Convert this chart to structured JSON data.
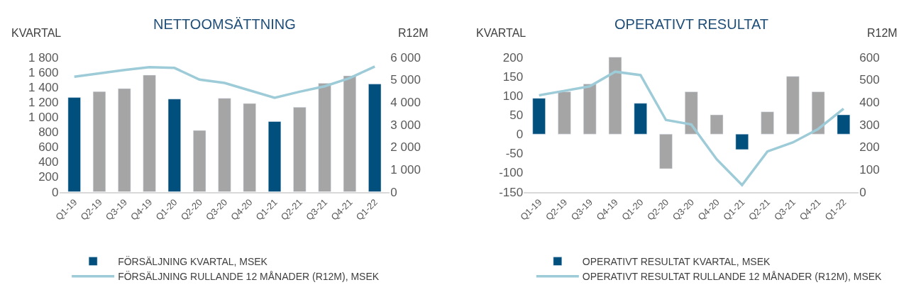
{
  "chart_data": [
    {
      "type": "bar",
      "title": "NETTOOMSÄTTNING",
      "ylabel": "KVARTAL",
      "y2label": "R12M",
      "categories": [
        "Q1-19",
        "Q2-19",
        "Q3-19",
        "Q4-19",
        "Q1-20",
        "Q2-20",
        "Q3-20",
        "Q4-20",
        "Q1-21",
        "Q2-21",
        "Q3-21",
        "Q4-21",
        "Q1-22"
      ],
      "series": [
        {
          "name": "FÖRSÄLJNING KVARTAL, MSEK",
          "colors": [
            "#004f7c",
            "#a5a5a5",
            "#a5a5a5",
            "#a5a5a5",
            "#004f7c",
            "#a5a5a5",
            "#a5a5a5",
            "#a5a5a5",
            "#004f7c",
            "#a5a5a5",
            "#a5a5a5",
            "#a5a5a5",
            "#004f7c"
          ],
          "values": [
            1260,
            1340,
            1380,
            1560,
            1240,
            820,
            1250,
            1180,
            940,
            1130,
            1450,
            1550,
            1440
          ]
        },
        {
          "name": "FÖRSÄLJNING RULLANDE 12 MÅNADER (R12M), MSEK",
          "type": "line",
          "axis": "y2",
          "color": "#9dcbd8",
          "values": [
            5130,
            5280,
            5430,
            5550,
            5520,
            5000,
            4850,
            4520,
            4190,
            4460,
            4700,
            5070,
            5580
          ]
        }
      ],
      "ylim": [
        0,
        1800
      ],
      "yticks": [
        {
          "value": 0,
          "label": "0"
        },
        {
          "value": 200,
          "label": "200"
        },
        {
          "value": 400,
          "label": "400"
        },
        {
          "value": 600,
          "label": "600"
        },
        {
          "value": 800,
          "label": "800"
        },
        {
          "value": 1000,
          "label": "1 000"
        },
        {
          "value": 1200,
          "label": "1 200"
        },
        {
          "value": 1400,
          "label": "1 400"
        },
        {
          "value": 1600,
          "label": "1 600"
        },
        {
          "value": 1800,
          "label": "1 800"
        }
      ],
      "y2lim": [
        0,
        6000
      ],
      "y2ticks": [
        {
          "value": 0,
          "label": "0"
        },
        {
          "value": 1000,
          "label": "1 000"
        },
        {
          "value": 2000,
          "label": "2 000"
        },
        {
          "value": 3000,
          "label": "3 000"
        },
        {
          "value": 4000,
          "label": "4 000"
        },
        {
          "value": 5000,
          "label": "5 000"
        },
        {
          "value": 6000,
          "label": "6 000"
        }
      ],
      "legend": "bottom",
      "marker": "none",
      "line_style": "solid"
    },
    {
      "type": "bar",
      "title": "OPERATIVT RESULTAT",
      "ylabel": "KVARTAL",
      "y2label": "R12M",
      "categories": [
        "Q1-19",
        "Q2-19",
        "Q3-19",
        "Q4-19",
        "Q1-20",
        "Q2-20",
        "Q3-20",
        "Q4-20",
        "Q1-21",
        "Q2-21",
        "Q3-21",
        "Q4-21",
        "Q1-22"
      ],
      "series": [
        {
          "name": "OPERATIVT RESULTAT KVARTAL, MSEK",
          "colors": [
            "#004f7c",
            "#a5a5a5",
            "#a5a5a5",
            "#a5a5a5",
            "#004f7c",
            "#a5a5a5",
            "#a5a5a5",
            "#a5a5a5",
            "#004f7c",
            "#a5a5a5",
            "#a5a5a5",
            "#a5a5a5",
            "#004f7c"
          ],
          "values": [
            93,
            110,
            130,
            200,
            80,
            -90,
            110,
            50,
            -40,
            58,
            150,
            110,
            50
          ]
        },
        {
          "name": "OPERATIVT RESULTAT RULLANDE 12 MÅNADER (R12M), MSEK",
          "type": "line",
          "axis": "y2",
          "color": "#9dcbd8",
          "values": [
            430,
            450,
            470,
            535,
            520,
            320,
            300,
            145,
            30,
            180,
            220,
            280,
            370
          ]
        }
      ],
      "ylim": [
        -150,
        200
      ],
      "yticks": [
        -150,
        -100,
        -50,
        0,
        50,
        100,
        150,
        200
      ],
      "y2lim": [
        0,
        600
      ],
      "y2ticks": [
        0,
        100,
        200,
        300,
        400,
        500,
        600
      ],
      "legend": "bottom",
      "marker": "none",
      "line_style": "solid"
    }
  ]
}
